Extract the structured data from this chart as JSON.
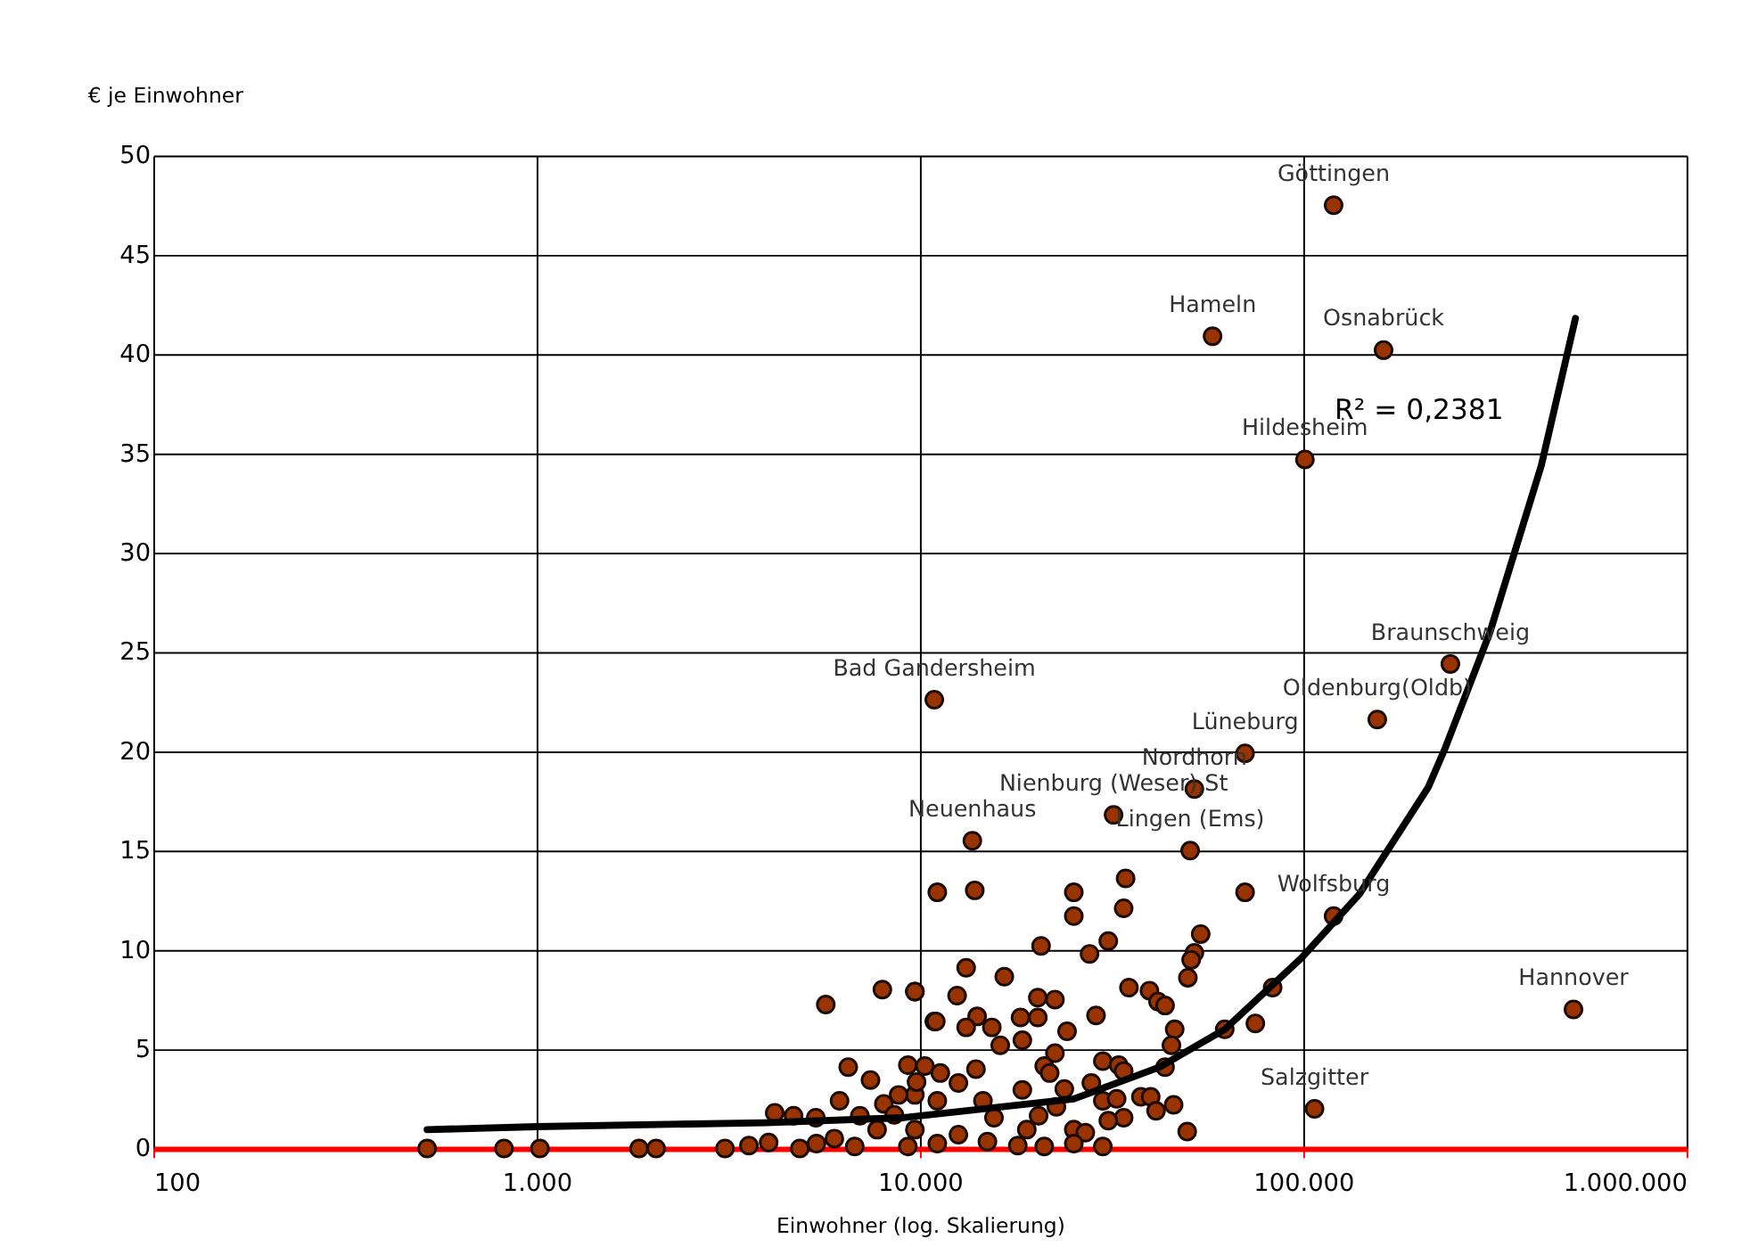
{
  "chart_data": {
    "type": "scatter",
    "xlabel": "Einwohner (log. Skalierung)",
    "ylabel": "€ je Einwohner",
    "log": "x",
    "xlim": [
      100,
      1000000
    ],
    "xticks": [
      {
        "value": 100,
        "label": "100"
      },
      {
        "value": 1000,
        "label": "1.000"
      },
      {
        "value": 10000,
        "label": "10.000"
      },
      {
        "value": 100000,
        "label": "100.000"
      },
      {
        "value": 1000000,
        "label": "1.000.000"
      }
    ],
    "ylim": [
      0,
      50
    ],
    "yticks": [
      0,
      5,
      10,
      15,
      20,
      25,
      30,
      35,
      40,
      45,
      50
    ],
    "grid": true,
    "legend": false,
    "marker": "circle",
    "series": [
      {
        "color": "#993300",
        "x": [
          120000,
          58000,
          162000,
          101000,
          242000,
          156000,
          70500,
          52000,
          32000,
          13700,
          10900,
          50700,
          120000,
          507000,
          107000,
          518,
          822,
          1020,
          1850,
          2050,
          3100,
          3580,
          4030,
          11100,
          5680,
          7980,
          9700,
          10900,
          6500,
          7430,
          6170,
          4180,
          4680,
          5350,
          9300,
          8050,
          9700,
          13900,
          25200,
          25200,
          34400,
          34000,
          70500,
          54000,
          52000,
          51000,
          50000,
          31000,
          20700,
          27700,
          13200,
          16600,
          9700,
          12500,
          20300,
          22500,
          35100,
          39700,
          41800,
          43600,
          83200,
          75000,
          62400,
          46200,
          45300,
          43600,
          37700,
          40000,
          41300,
          45900,
          49800,
          28800,
          24200,
          18500,
          18300,
          20300,
          15400,
          14100,
          11000,
          13200,
          16200,
          22500,
          30000,
          33000,
          34000,
          21100,
          21800,
          28000,
          30000,
          32600,
          34000,
          31000,
          25200,
          27000,
          30000,
          18500,
          23800,
          14000,
          12600,
          10300,
          11300,
          9800,
          11100,
          14600,
          15600,
          20400,
          22700,
          19000,
          25200,
          21100,
          18000,
          15000,
          12600,
          11100,
          9700,
          9300,
          6760,
          5980,
          7730,
          8570,
          8800,
          6970,
          5370,
          4860
        ],
        "values": [
          47.5,
          40.9,
          40.2,
          34.7,
          24.4,
          21.6,
          19.9,
          18.1,
          16.8,
          15.5,
          22.6,
          15.0,
          11.7,
          7.0,
          2.0,
          0,
          0,
          0,
          0,
          0,
          0,
          0.15,
          0.3,
          12.9,
          7.25,
          8.0,
          7.9,
          6.4,
          4.1,
          3.45,
          2.4,
          1.8,
          1.65,
          1.55,
          4.2,
          2.25,
          2.7,
          13.0,
          12.9,
          11.7,
          13.6,
          12.1,
          12.9,
          10.8,
          9.85,
          9.5,
          8.6,
          10.45,
          10.2,
          9.8,
          9.1,
          8.65,
          7.9,
          7.7,
          7.6,
          7.5,
          8.1,
          7.95,
          7.4,
          7.2,
          8.1,
          6.3,
          6.0,
          6.0,
          5.2,
          4.1,
          2.6,
          2.6,
          1.9,
          2.2,
          0.85,
          6.7,
          5.9,
          5.45,
          6.6,
          6.6,
          6.1,
          6.65,
          6.4,
          6.1,
          5.2,
          4.8,
          4.4,
          4.2,
          3.9,
          4.15,
          3.8,
          3.3,
          2.4,
          2.5,
          1.55,
          1.4,
          0.95,
          0.8,
          0.1,
          2.95,
          3.0,
          4.0,
          3.3,
          4.15,
          3.8,
          3.35,
          2.4,
          2.4,
          1.55,
          1.65,
          2.1,
          0.95,
          0.25,
          0.1,
          0.15,
          0.35,
          0.7,
          0.25,
          0.95,
          0.1,
          0.1,
          0.5,
          0.95,
          1.7,
          2.7,
          1.65,
          0.25,
          0
        ]
      },
      {
        "type": "line",
        "marker": "none",
        "color": "#000000",
        "x": [
          518,
          1000,
          3960,
          9000,
          25200,
          42200,
          62400,
          99000,
          140000,
          212000,
          235000,
          307000,
          418000,
          513000
        ],
        "values": [
          0.95,
          1.1,
          1.3,
          1.55,
          2.5,
          4.1,
          6.0,
          9.6,
          12.8,
          18.2,
          20.2,
          26.0,
          34.4,
          41.8
        ]
      }
    ],
    "annotations": [
      {
        "text": "Göttingen",
        "x": 120000,
        "y": 47.5
      },
      {
        "text": "Hameln",
        "x": 58000,
        "y": 40.9
      },
      {
        "text": "Osnabrück",
        "x": 162000,
        "y": 40.2
      },
      {
        "text": "Hildesheim",
        "x": 101000,
        "y": 34.7
      },
      {
        "text": "Braunschweig",
        "x": 242000,
        "y": 24.4
      },
      {
        "text": "Oldenburg(Oldb)",
        "x": 156000,
        "y": 21.6
      },
      {
        "text": "Lüneburg",
        "x": 70500,
        "y": 19.9
      },
      {
        "text": "Nordhorn",
        "x": 52000,
        "y": 18.1
      },
      {
        "text": "Nienburg (Weser),St",
        "x": 32000,
        "y": 16.8
      },
      {
        "text": "Neuenhaus",
        "x": 13700,
        "y": 15.5
      },
      {
        "text": "Bad Gandersheim",
        "x": 10900,
        "y": 22.6
      },
      {
        "text": "Lingen (Ems)",
        "x": 50700,
        "y": 15.0
      },
      {
        "text": "Wolfsburg",
        "x": 120000,
        "y": 11.7
      },
      {
        "text": "Hannover",
        "x": 507000,
        "y": 7.0
      },
      {
        "text": "Salzgitter",
        "x": 107000,
        "y": 2.0
      },
      "R² = 0,2381"
    ]
  }
}
